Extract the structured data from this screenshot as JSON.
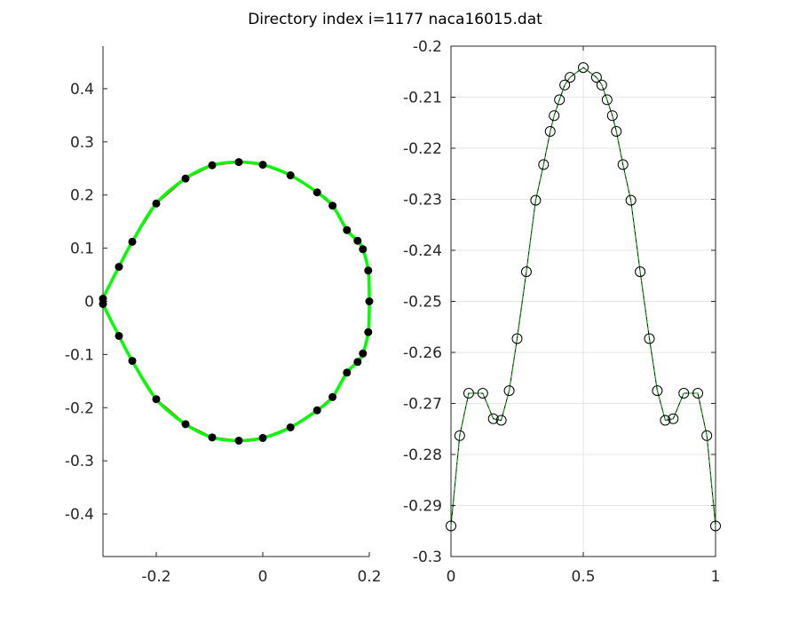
{
  "chart_data": [
    {
      "type": "scatter",
      "title": "Directory index i=1177 naca16015.dat",
      "xlim": [
        -0.3,
        0.2
      ],
      "ylim": [
        -0.48,
        0.48
      ],
      "xticks": [
        "-0.2",
        "0",
        "0.2"
      ],
      "yticks": [
        "-0.4",
        "-0.3",
        "-0.2",
        "-0.1",
        "0",
        "0.1",
        "0.2",
        "0.3",
        "0.4"
      ],
      "grid": false,
      "colors": {
        "points": "#000000",
        "line_red": "#ff0000",
        "line_green": "#00ff00"
      },
      "points": [
        [
          0.2,
          0.0
        ],
        [
          0.198,
          0.058
        ],
        [
          0.188,
          0.098
        ],
        [
          0.178,
          0.114
        ],
        [
          0.158,
          0.134
        ],
        [
          0.131,
          0.18
        ],
        [
          0.102,
          0.205
        ],
        [
          0.052,
          0.237
        ],
        [
          0.0,
          0.257
        ],
        [
          -0.045,
          0.262
        ],
        [
          -0.095,
          0.256
        ],
        [
          -0.145,
          0.231
        ],
        [
          -0.2,
          0.184
        ],
        [
          -0.245,
          0.112
        ],
        [
          -0.27,
          0.065
        ],
        [
          -0.3,
          0.005
        ],
        [
          -0.3,
          -0.005
        ],
        [
          -0.27,
          -0.065
        ],
        [
          -0.245,
          -0.112
        ],
        [
          -0.2,
          -0.184
        ],
        [
          -0.145,
          -0.231
        ],
        [
          -0.095,
          -0.256
        ],
        [
          -0.045,
          -0.262
        ],
        [
          0.0,
          -0.257
        ],
        [
          0.052,
          -0.237
        ],
        [
          0.102,
          -0.205
        ],
        [
          0.131,
          -0.18
        ],
        [
          0.158,
          -0.134
        ],
        [
          0.178,
          -0.114
        ],
        [
          0.188,
          -0.098
        ],
        [
          0.198,
          -0.058
        ]
      ]
    },
    {
      "type": "line",
      "xlim": [
        0,
        1
      ],
      "ylim": [
        -0.3,
        -0.2
      ],
      "xticks": [
        "0",
        "0.5",
        "1"
      ],
      "yticks": [
        "-0.2",
        "-0.21",
        "-0.22",
        "-0.23",
        "-0.24",
        "-0.25",
        "-0.26",
        "-0.27",
        "-0.28",
        "-0.29",
        "-0.3"
      ],
      "grid": true,
      "colors": {
        "line_black": "#000000",
        "line_green": "#00aa00"
      },
      "x": [
        0,
        0.033,
        0.067,
        0.12,
        0.16,
        0.19,
        0.22,
        0.25,
        0.285,
        0.32,
        0.35,
        0.375,
        0.39,
        0.41,
        0.43,
        0.45,
        0.5,
        0.55,
        0.57,
        0.59,
        0.61,
        0.625,
        0.65,
        0.68,
        0.715,
        0.75,
        0.78,
        0.81,
        0.84,
        0.88,
        0.933,
        0.967,
        1.0
      ],
      "y": [
        -0.294,
        -0.2763,
        -0.268,
        -0.268,
        -0.273,
        -0.2733,
        -0.2675,
        -0.2573,
        -0.2442,
        -0.2302,
        -0.2232,
        -0.2167,
        -0.2136,
        -0.2105,
        -0.2076,
        -0.2061,
        -0.2042,
        -0.2061,
        -0.2076,
        -0.2105,
        -0.2136,
        -0.2167,
        -0.2232,
        -0.2302,
        -0.2442,
        -0.2573,
        -0.2675,
        -0.2733,
        -0.273,
        -0.268,
        -0.268,
        -0.2763,
        -0.294
      ]
    }
  ]
}
